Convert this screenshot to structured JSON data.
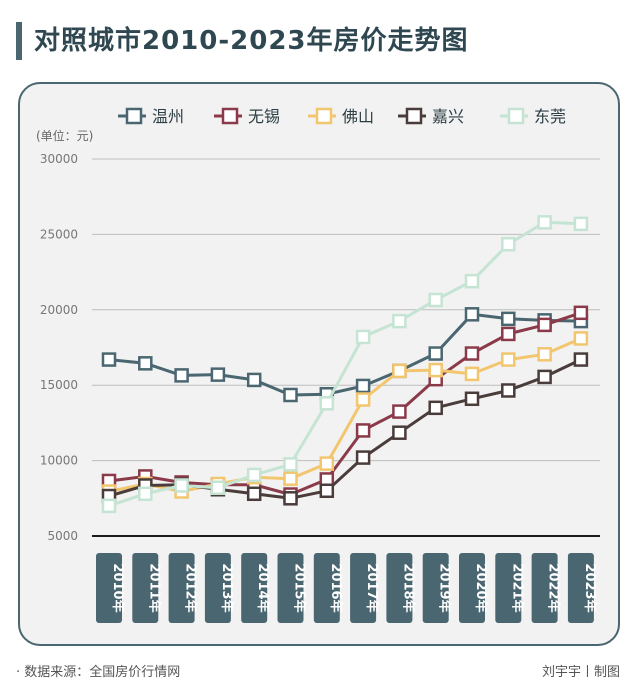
{
  "title": "对照城市2010-2023年房价走势图",
  "footer": {
    "source": "· 数据来源：全国房价行情网",
    "credit": "刘宇宇丨制图"
  },
  "chart_data": {
    "type": "line",
    "unit_label": "(单位：元)",
    "ylim": [
      5000,
      30000
    ],
    "yticks": [
      5000,
      10000,
      15000,
      20000,
      25000,
      30000
    ],
    "grid": true,
    "legend_position": "top",
    "categories": [
      "2010年",
      "2011年",
      "2012年",
      "2013年",
      "2014年",
      "2015年",
      "2016年",
      "2017年",
      "2018年",
      "2019年",
      "2020年",
      "2021年",
      "2022年",
      "2023年"
    ],
    "series": [
      {
        "name": "温州",
        "color": "#4a6670",
        "values": [
          16700,
          16450,
          15650,
          15700,
          15350,
          14350,
          14400,
          14950,
          15950,
          17100,
          19700,
          19400,
          19300,
          19250
        ]
      },
      {
        "name": "无锡",
        "color": "#8b3a4a",
        "values": [
          8650,
          8950,
          8550,
          8400,
          8400,
          7750,
          8750,
          12000,
          13250,
          15400,
          17100,
          18400,
          19000,
          19800
        ]
      },
      {
        "name": "佛山",
        "color": "#f2c66e",
        "values": [
          7950,
          8450,
          7950,
          8450,
          8900,
          8800,
          9800,
          14050,
          15950,
          16000,
          15750,
          16700,
          17050,
          18100
        ]
      },
      {
        "name": "嘉兴",
        "color": "#4a3c3a",
        "values": [
          7650,
          8350,
          8400,
          8100,
          7800,
          7500,
          8000,
          10200,
          11850,
          13500,
          14100,
          14650,
          15550,
          16700
        ]
      },
      {
        "name": "东莞",
        "color": "#c5e4d3",
        "values": [
          7000,
          7800,
          8350,
          8200,
          9050,
          9750,
          13800,
          18200,
          19250,
          20650,
          21900,
          24350,
          25800,
          25700
        ]
      }
    ]
  }
}
